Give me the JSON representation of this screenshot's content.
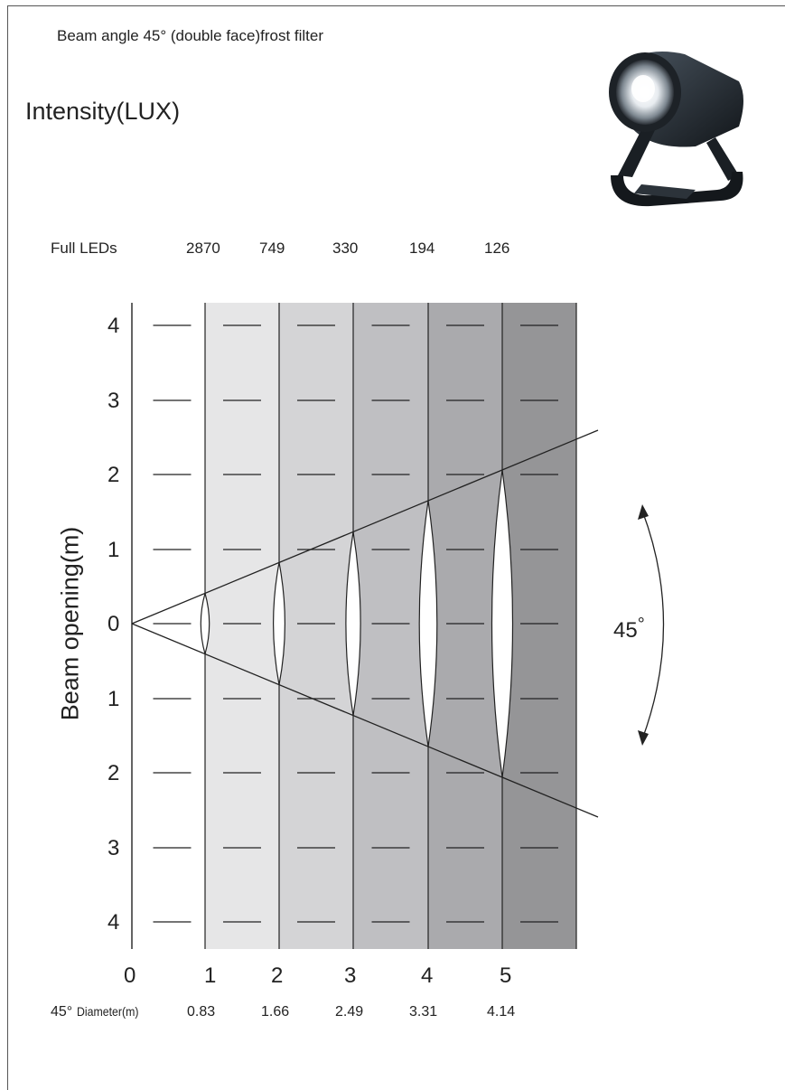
{
  "header": {
    "subtitle": "Beam angle  45°   (double face)frost filter",
    "title": "Intensity(LUX)"
  },
  "full_leds": {
    "label": "Full LEDs",
    "values": [
      "2870",
      "749",
      "330",
      "194",
      "126"
    ]
  },
  "y_axis": {
    "label": "Beam opening(m)",
    "ticks": [
      "4",
      "3",
      "2",
      "1",
      "0",
      "1",
      "2",
      "3",
      "4"
    ]
  },
  "x_axis": {
    "ticks": [
      "0",
      "1",
      "2",
      "3",
      "4",
      "5"
    ]
  },
  "diameter": {
    "label_prefix": "45°",
    "label_main": "Diameter(m)",
    "values": [
      "0.83",
      "1.66",
      "2.49",
      "3.31",
      "4.14"
    ]
  },
  "beam_angle": {
    "label": "45",
    "degree": "°"
  },
  "colors": {
    "band_fills": [
      "#ffffff",
      "#e6e6e7",
      "#d4d4d6",
      "#bfbfc2",
      "#aaaaad",
      "#959597"
    ],
    "line": "#222222"
  },
  "icons": {
    "fixture": "led-spotlight-fixture-image",
    "angle_arrow": "double-arrow-arc-icon"
  }
}
